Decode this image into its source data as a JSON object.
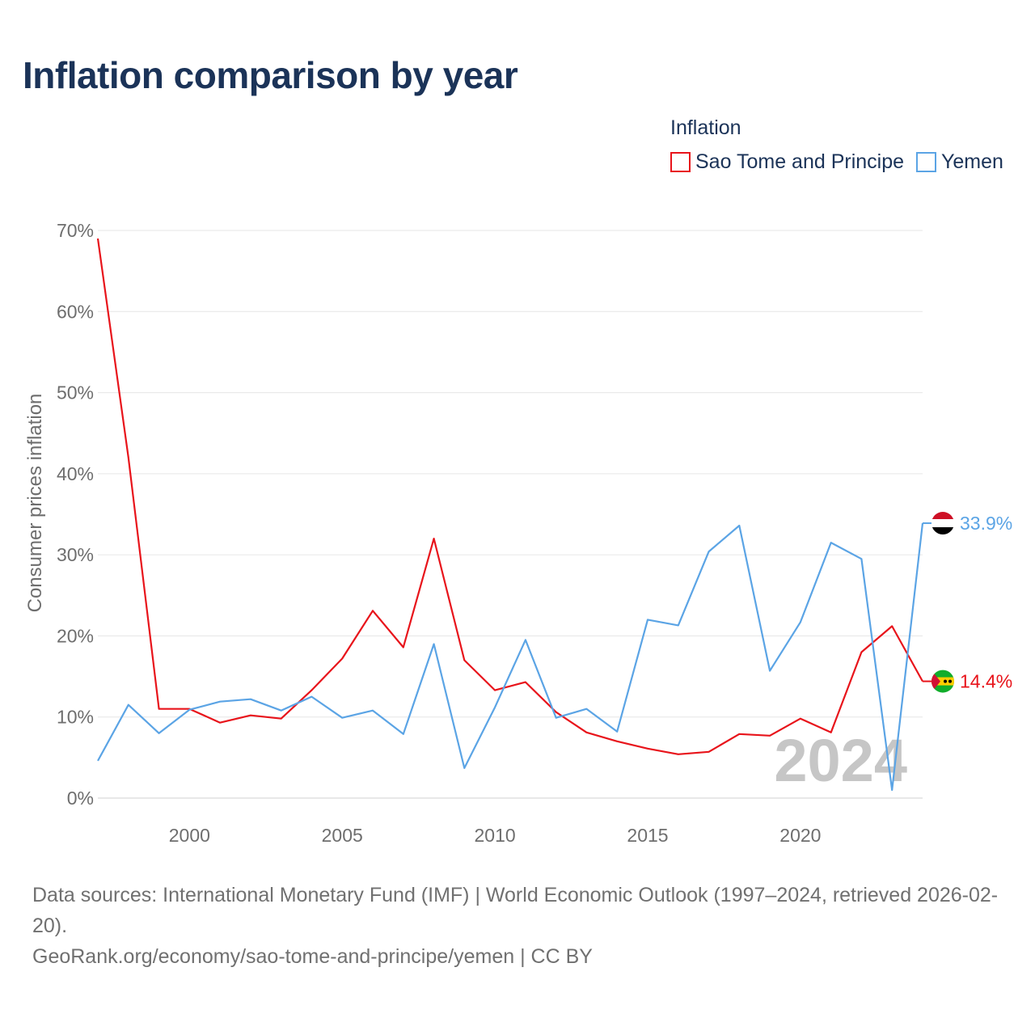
{
  "title": "Inflation comparison by year",
  "legend": {
    "title": "Inflation",
    "items": [
      {
        "label": "Sao Tome and Principe",
        "color": "#e8141b"
      },
      {
        "label": "Yemen",
        "color": "#5ba4e5"
      }
    ]
  },
  "chart_data": {
    "type": "line",
    "title": "Inflation comparison by year",
    "ylabel": "Consumer prices inflation",
    "xlabel": "",
    "xlim": [
      1997,
      2024
    ],
    "ylim": [
      0,
      70
    ],
    "yticks": [
      0,
      10,
      20,
      30,
      40,
      50,
      60,
      70
    ],
    "ytick_labels": [
      "0%",
      "10%",
      "20%",
      "30%",
      "40%",
      "50%",
      "60%",
      "70%"
    ],
    "xticks": [
      2000,
      2005,
      2010,
      2015,
      2020
    ],
    "xtick_labels": [
      "2000",
      "2005",
      "2010",
      "2015",
      "2020"
    ],
    "grid": true,
    "year_label": "2024",
    "x": [
      1997,
      1998,
      1999,
      2000,
      2001,
      2002,
      2003,
      2004,
      2005,
      2006,
      2007,
      2008,
      2009,
      2010,
      2011,
      2012,
      2013,
      2014,
      2015,
      2016,
      2017,
      2018,
      2019,
      2020,
      2021,
      2022,
      2023,
      2024
    ],
    "series": [
      {
        "name": "Sao Tome and Principe",
        "color": "#e8141b",
        "end_label": "14.4%",
        "values": [
          69.0,
          42.0,
          11.0,
          11.0,
          9.3,
          10.2,
          9.8,
          13.3,
          17.2,
          23.1,
          18.6,
          32.0,
          17.0,
          13.3,
          14.3,
          10.6,
          8.1,
          7.0,
          6.1,
          5.4,
          5.7,
          7.9,
          7.7,
          9.8,
          8.1,
          18.0,
          21.2,
          14.4
        ]
      },
      {
        "name": "Yemen",
        "color": "#5ba4e5",
        "end_label": "33.9%",
        "values": [
          4.6,
          11.5,
          8.0,
          10.9,
          11.9,
          12.2,
          10.8,
          12.5,
          9.9,
          10.8,
          7.9,
          19.0,
          3.7,
          11.2,
          19.5,
          9.9,
          11.0,
          8.2,
          22.0,
          21.3,
          30.4,
          33.6,
          15.7,
          21.7,
          31.5,
          29.5,
          1.0,
          33.9
        ]
      }
    ]
  },
  "source": {
    "line1": "Data sources: International Monetary Fund (IMF) | World Economic Outlook (1997–2024, retrieved 2026-02-20).",
    "line2": "GeoRank.org/economy/sao-tome-and-principe/yemen | CC BY"
  }
}
